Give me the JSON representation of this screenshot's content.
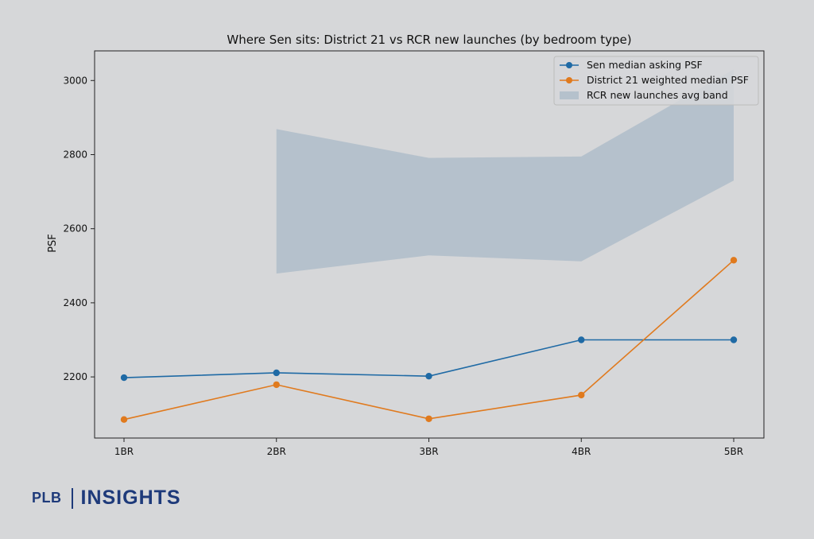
{
  "chart_data": {
    "type": "line",
    "title": "Where Sen sits: District 21 vs RCR new launches (by bedroom type)",
    "xlabel": "",
    "ylabel": "PSF",
    "categories": [
      "1BR",
      "2BR",
      "3BR",
      "4BR",
      "5BR"
    ],
    "ylim": [
      2035,
      3080
    ],
    "yticks": [
      2200,
      2400,
      2600,
      2800,
      3000
    ],
    "grid": false,
    "legend_position": "top-right",
    "series": [
      {
        "name": "Sen median asking PSF",
        "color": "#1f6aa5",
        "values": [
          2198,
          2211,
          2202,
          2300,
          2300
        ]
      },
      {
        "name": "District 21 weighted median PSF",
        "color": "#e07a1e",
        "values": [
          2085,
          2179,
          2087,
          2151,
          2515
        ]
      }
    ],
    "band": {
      "name": "RCR new launches avg band",
      "color": "#a9b9c7",
      "categories": [
        "2BR",
        "3BR",
        "4BR",
        "5BR"
      ],
      "lower": [
        2479,
        2528,
        2512,
        2730
      ],
      "upper": [
        2869,
        2791,
        2795,
        3030
      ]
    }
  },
  "branding": {
    "left": "PLB",
    "right": "INSIGHTS"
  }
}
